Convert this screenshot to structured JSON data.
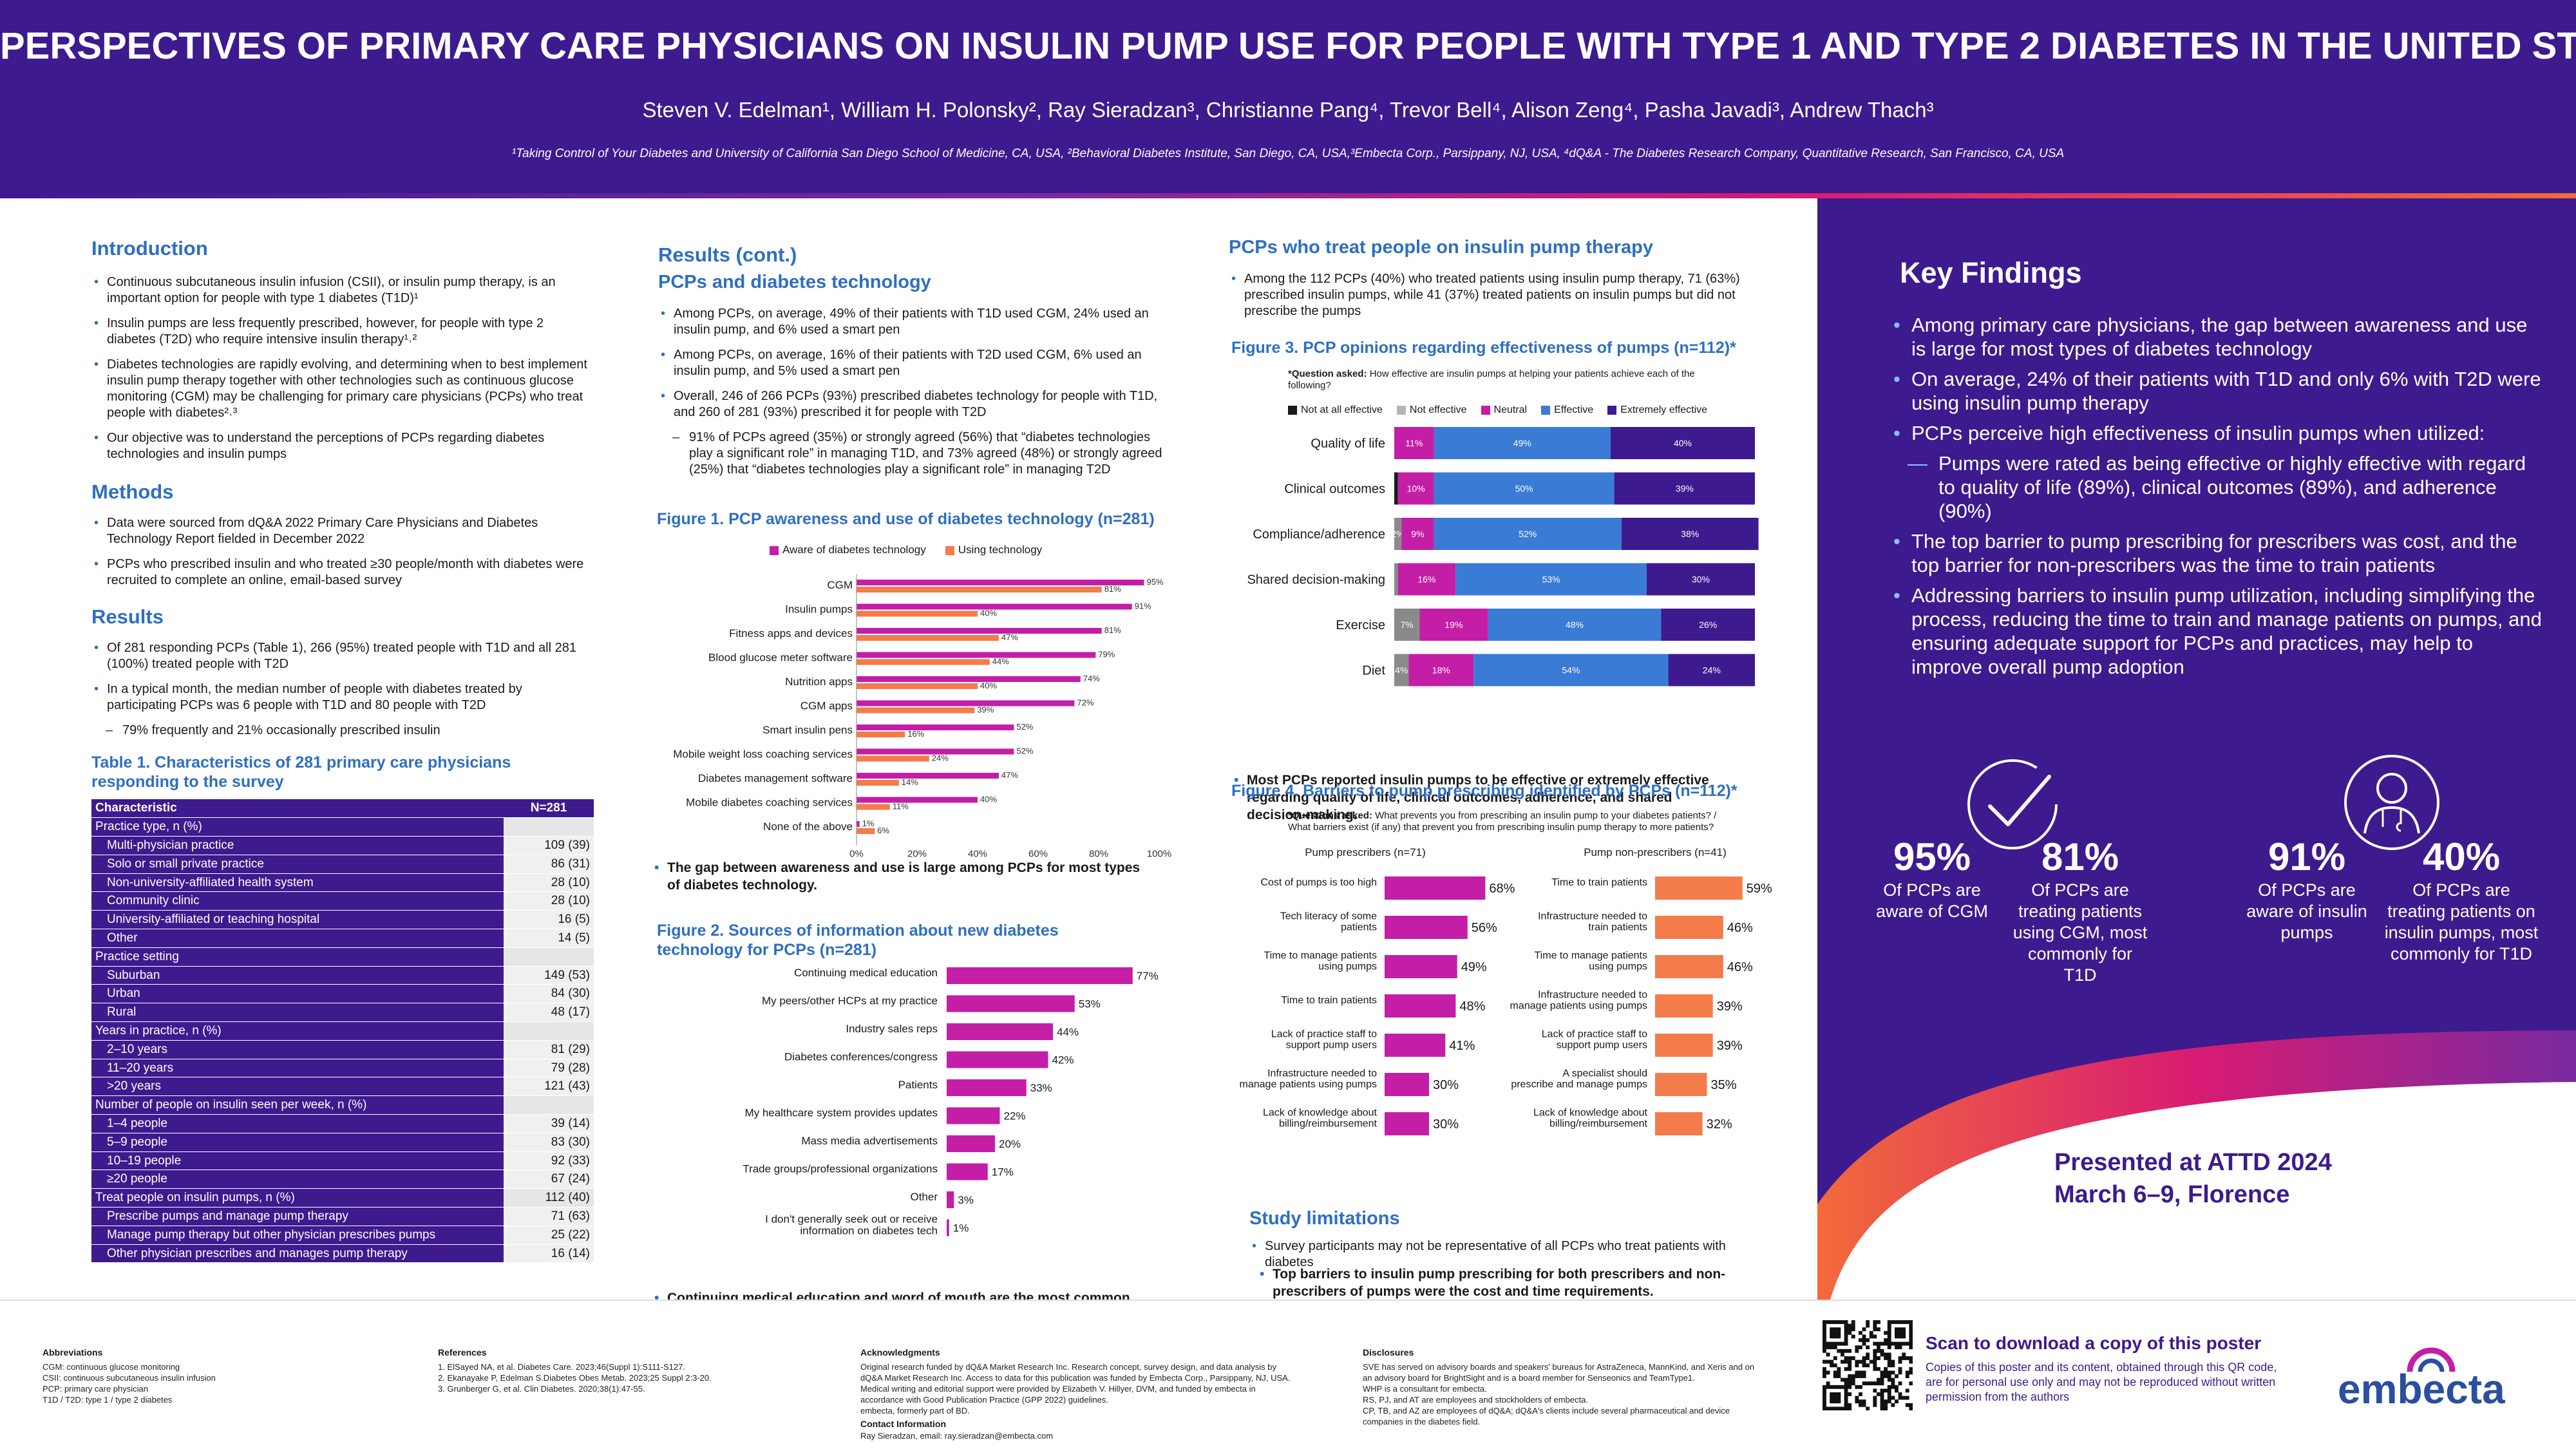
{
  "header": {
    "title": "PERSPECTIVES OF PRIMARY CARE PHYSICIANS ON INSULIN PUMP USE FOR PEOPLE WITH TYPE 1 AND TYPE 2 DIABETES IN THE UNITED STATES",
    "authors": "Steven V. Edelman¹, William H. Polonsky², Ray Sieradzan³, Christianne Pang⁴, Trevor Bell⁴, Alison Zeng⁴, Pasha Javadi³, Andrew Thach³",
    "affiliations": "¹Taking Control of Your Diabetes and University of California San Diego School of Medicine, CA, USA, ²Behavioral Diabetes Institute, San Diego, CA, USA,³Embecta Corp., Parsippany, NJ, USA, ⁴dQ&A - The Diabetes Research Company, Quantitative Research, San Francisco, CA, USA"
  },
  "intro": {
    "heading": "Introduction",
    "bullets": [
      "Continuous subcutaneous insulin infusion (CSII), or insulin pump therapy, is an important option for people with type 1 diabetes (T1D)¹",
      "Insulin pumps are less frequently prescribed, however, for people with type 2 diabetes (T2D) who require intensive insulin therapy¹˒²",
      "Diabetes technologies are rapidly evolving, and determining when to best implement insulin pump therapy together with other technologies such as continuous glucose monitoring (CGM) may be challenging for primary care physicians (PCPs) who treat people with diabetes²˒³",
      "Our objective was to understand the perceptions of PCPs regarding diabetes technologies and insulin pumps"
    ]
  },
  "methods": {
    "heading": "Methods",
    "bullets": [
      "Data were sourced from dQ&A 2022 Primary Care Physicians and Diabetes Technology Report fielded in December 2022",
      "PCPs who prescribed insulin and who treated ≥30 people/month with diabetes were recruited to complete an online, email-based survey"
    ]
  },
  "results": {
    "heading": "Results",
    "bullets": [
      "Of 281 responding PCPs (Table 1), 266 (95%) treated people with T1D and all 281 (100%) treated people with T2D",
      "In a typical month, the median number of people with diabetes treated by participating PCPs was 6 people with T1D and 80 people with T2D"
    ],
    "sub": "79% frequently and 21% occasionally prescribed insulin"
  },
  "table1": {
    "title": "Table 1. Characteristics of 281 primary care physicians responding to the survey",
    "header": [
      "Characteristic",
      "N=281"
    ],
    "rows": [
      {
        "label": "Practice type, n (%)",
        "value": "",
        "kind": "s"
      },
      {
        "label": "Multi-physician practice",
        "value": "109 (39)",
        "kind": "i"
      },
      {
        "label": "Solo or small private practice",
        "value": "86 (31)",
        "kind": "i"
      },
      {
        "label": "Non-university-affiliated health system",
        "value": "28 (10)",
        "kind": "i"
      },
      {
        "label": "Community clinic",
        "value": "28 (10)",
        "kind": "i"
      },
      {
        "label": "University-affiliated or teaching hospital",
        "value": "16 (5)",
        "kind": "i"
      },
      {
        "label": "Other",
        "value": "14 (5)",
        "kind": "i"
      },
      {
        "label": "Practice setting",
        "value": "",
        "kind": "s"
      },
      {
        "label": "Suburban",
        "value": "149 (53)",
        "kind": "i"
      },
      {
        "label": "Urban",
        "value": "84 (30)",
        "kind": "i"
      },
      {
        "label": "Rural",
        "value": "48 (17)",
        "kind": "i"
      },
      {
        "label": "Years in practice, n (%)",
        "value": "",
        "kind": "s"
      },
      {
        "label": "2–10 years",
        "value": "81 (29)",
        "kind": "i"
      },
      {
        "label": "11–20 years",
        "value": "79 (28)",
        "kind": "i"
      },
      {
        "label": ">20 years",
        "value": "121 (43)",
        "kind": "i"
      },
      {
        "label": "Number of people on insulin seen per week, n (%)",
        "value": "",
        "kind": "s"
      },
      {
        "label": "1–4 people",
        "value": "39 (14)",
        "kind": "i"
      },
      {
        "label": "5–9 people",
        "value": "83 (30)",
        "kind": "i"
      },
      {
        "label": "10–19 people",
        "value": "92 (33)",
        "kind": "i"
      },
      {
        "label": "≥20 people",
        "value": "67 (24)",
        "kind": "i"
      },
      {
        "label": "Treat people on insulin pumps, n (%)",
        "value": "112 (40)",
        "kind": "s"
      },
      {
        "label": "Prescribe pumps and manage pump therapy",
        "value": "71 (63)",
        "kind": "i"
      },
      {
        "label": "Manage pump therapy but other physician prescribes pumps",
        "value": "25 (22)",
        "kind": "i"
      },
      {
        "label": "Other physician prescribes and manages pump therapy",
        "value": "16 (14)",
        "kind": "i"
      }
    ]
  },
  "results_cont": {
    "heading": "Results (cont.)",
    "subheading": "PCPs and diabetes technology",
    "bullets": [
      "Among PCPs, on average, 49% of their patients with T1D used CGM, 24% used an insulin pump, and 6% used a smart pen",
      "Among PCPs, on average, 16% of their patients with T2D used CGM, 6% used an insulin pump, and 5% used a smart pen",
      "Overall, 246 of 266 PCPs (93%) prescribed diabetes technology for people with T1D, and 260 of 281 (93%) prescribed it for people with T2D"
    ],
    "sub": "91% of PCPs agreed (35%) or strongly agreed (56%) that “diabetes technologies play a significant role” in managing T1D, and 73% agreed (48%) or strongly agreed (25%) that “diabetes technologies play a significant role” in managing T2D"
  },
  "fig1": {
    "title": "Figure 1. PCP awareness and use of diabetes technology (n=281)",
    "takeaway": "The gap between awareness and use is large among PCPs for most types of diabetes technology."
  },
  "fig2": {
    "title": "Figure 2. Sources of information about new diabetes technology for PCPs (n=281)",
    "takeaway": "Continuing medical education and word of mouth are the most common sources of information about new diabetes technology."
  },
  "pump_section": {
    "heading": "PCPs who treat people on insulin pump therapy",
    "bullet": "Among the 112 PCPs (40%) who treated patients using insulin pump therapy, 71 (63%) prescribed insulin pumps, while 41 (37%) treated patients on insulin pumps but did not prescribe the pumps"
  },
  "fig3": {
    "title": "Figure 3. PCP opinions regarding effectiveness of pumps (n=112)*",
    "question_label": "*Question asked:",
    "question": "How effective are insulin pumps at helping your patients achieve each of the following?",
    "takeaway": "Most PCPs reported insulin pumps to be effective or extremely effective regarding quality of life, clinical outcomes, adherence, and shared decision-making."
  },
  "fig4": {
    "title": "Figure 4. Barriers to pump prescribing identified by PCPs (n=112)*",
    "question_label": "*Questions asked:",
    "question": "What prevents you from prescribing an insulin pump to your diabetes patients? / What barriers exist (if any) that prevent you from prescribing insulin pump therapy to more patients?",
    "takeaway": "Top barriers to insulin pump prescribing for both prescribers and non-prescribers of pumps were the cost and time requirements."
  },
  "limitations": {
    "heading": "Study limitations",
    "bullet": "Survey participants may not be representative of all PCPs who treat patients with diabetes"
  },
  "key_findings": {
    "heading": "Key Findings",
    "bullets": [
      "Among primary care physicians, the gap between awareness and use is large for most types of diabetes technology",
      "On average, 24% of their patients with T1D and only 6% with T2D were using insulin pump therapy",
      "PCPs perceive high effectiveness of insulin pumps when utilized:"
    ],
    "sub": "Pumps were rated as being effective or highly effective with regard to quality of life (89%), clinical outcomes (89%), and adherence (90%)",
    "bullets2": [
      "The top barrier to pump prescribing for prescribers was cost, and the top barrier for non-prescribers was the time to train patients",
      "Addressing barriers to insulin pump utilization, including simplifying the process, reducing the time to train and manage patients on pumps, and ensuring adequate support for PCPs and practices, may help to improve overall pump adoption"
    ],
    "stats": [
      {
        "big": "95%",
        "label": "Of PCPs are aware of CGM"
      },
      {
        "big": "81%",
        "label": "Of PCPs  are treating patients using CGM, most commonly for T1D"
      },
      {
        "big": "91%",
        "label": "Of PCPs are aware of insulin pumps"
      },
      {
        "big": "40%",
        "label": "Of PCPs are treating patients on insulin pumps, most commonly for T1D"
      }
    ],
    "presented_line1": "Presented at ATTD 2024",
    "presented_line2": "March 6–9, Florence"
  },
  "footer": {
    "abbrev_heading": "Abbreviations",
    "abbrev": [
      "CGM: continuous glucose monitoring",
      "CSII: continuous subcutaneous insulin infusion",
      "PCP: primary care physician",
      "T1D / T2D: type 1 / type 2 diabetes"
    ],
    "refs_heading": "References",
    "refs": [
      "1.  ElSayed NA, et al. Diabetes Care. 2023;46(Suppl 1):S111-S127.",
      "2.  Ekanayake P, Edelman S.Diabetes Obes Metab. 2023;25 Suppl 2:3-20.",
      "3.  Grunberger G, et al. Clin Diabetes. 2020;38(1):47-55."
    ],
    "ack_heading": "Acknowledgments",
    "ack": [
      "Original research funded by dQ&A Market Research Inc. Research concept, survey design, and data analysis by dQ&A Market Research Inc. Access to data for this publication was funded by Embecta Corp., Parsippany, NJ, USA.",
      "Medical writing and editorial support were provided by Elizabeth V. Hillyer, DVM, and funded by embecta in accordance with Good Publication Practice (GPP 2022) guidelines.",
      "embecta, formerly part of BD."
    ],
    "contact_heading": "Contact Information",
    "contact": "Ray Sieradzan, email: ray.sieradzan@embecta.com",
    "disc_heading": "Disclosures",
    "disc": [
      "SVE has served on advisory boards and speakers' bureaus for AstraZeneca, MannKind, and Xeris and on an advisory board for BrightSight and is a board member for Senseonics and TeamType1.",
      "WHP is a consultant for embecta.",
      "RS, PJ, and AT are employees and stockholders of embecta.",
      "CP, TB, and AZ are employees of dQ&A; dQ&A's clients include several pharmaceutical and device companies in the diabetes field."
    ],
    "scan_title": "Scan to download a copy of this poster",
    "scan_text": "Copies of this poster and its content, obtained through this QR code, are for personal use only and may not be reproduced without written permission from the authors",
    "logo": "embecta"
  },
  "colors": {
    "navy": "#3d1a8e",
    "blue": "#2f6fc0",
    "magenta": "#c41ea6",
    "orange": "#f47b4a",
    "gray": "#7f7f7f",
    "effective": "#3a7bd5",
    "extremely": "#3d1a8e"
  },
  "chart_data": [
    {
      "type": "bar",
      "orientation": "horizontal",
      "categories": [
        "CGM",
        "Insulin pumps",
        "Fitness apps and devices",
        "Blood glucose meter software",
        "Nutrition apps",
        "CGM apps",
        "Smart insulin pens",
        "Mobile weight loss coaching services",
        "Diabetes management software",
        "Mobile diabetes coaching services",
        "None of the above"
      ],
      "series": [
        {
          "name": "Aware of diabetes technology",
          "values": [
            95,
            91,
            81,
            79,
            74,
            72,
            52,
            52,
            47,
            40,
            1
          ],
          "labels": [
            "95%",
            "91%",
            "81%",
            "79%",
            "74%",
            "72%",
            "52%",
            "52%",
            "47%",
            "40%",
            "1%"
          ]
        },
        {
          "name": "Using technology",
          "values": [
            81,
            40,
            47,
            44,
            40,
            39,
            16,
            24,
            14,
            11,
            6
          ],
          "labels": [
            "81%",
            "40%",
            "47%",
            "44%",
            "40%",
            "39%",
            "16%",
            "24%",
            "14%",
            "11%",
            "6%"
          ]
        }
      ],
      "xticks": [
        "0%",
        "20%",
        "40%",
        "60%",
        "80%",
        "100%"
      ],
      "xlim": [
        0,
        100
      ],
      "legend": "top"
    },
    {
      "type": "bar",
      "orientation": "horizontal",
      "categories": [
        "Continuing medical education",
        "My peers/other HCPs at my practice",
        "Industry sales reps",
        "Diabetes conferences/congress",
        "Patients",
        "My healthcare system provides updates",
        "Mass media advertisements",
        "Trade groups/professional organizations",
        "Other",
        "I don't generally seek out or receive information on diabetes tech"
      ],
      "values": [
        77,
        53,
        44,
        42,
        33,
        22,
        20,
        17,
        3,
        1
      ],
      "labels": [
        "77%",
        "53%",
        "44%",
        "42%",
        "33%",
        "22%",
        "20%",
        "17%",
        "3%",
        "1%"
      ],
      "xlim": [
        0,
        100
      ]
    },
    {
      "type": "bar",
      "stacked": true,
      "orientation": "horizontal",
      "categories": [
        "Quality of life",
        "Clinical outcomes",
        "Compliance/adherence",
        "Shared decision-making",
        "Exercise",
        "Diet"
      ],
      "series": [
        {
          "name": "Not at all effective",
          "values": [
            0,
            1,
            0,
            0,
            0,
            0
          ],
          "labels": [
            "",
            "",
            "",
            "",
            "",
            ""
          ]
        },
        {
          "name": "Not effective",
          "values": [
            0,
            0,
            2,
            1,
            7,
            4
          ],
          "labels": [
            "",
            "",
            "2%",
            "",
            "7%",
            "4%"
          ]
        },
        {
          "name": "Neutral",
          "values": [
            11,
            10,
            9,
            16,
            19,
            18
          ],
          "labels": [
            "11%",
            "10%",
            "9%",
            "16%",
            "19%",
            "18%"
          ]
        },
        {
          "name": "Effective",
          "values": [
            49,
            50,
            52,
            53,
            48,
            54
          ],
          "labels": [
            "49%",
            "50%",
            "52%",
            "53%",
            "48%",
            "54%"
          ]
        },
        {
          "name": "Extremely effective",
          "values": [
            40,
            39,
            38,
            30,
            26,
            24
          ],
          "labels": [
            "40%",
            "39%",
            "38%",
            "30%",
            "26%",
            "24%"
          ]
        }
      ],
      "xlim": [
        0,
        100
      ],
      "legend": "top"
    },
    {
      "type": "bar",
      "orientation": "horizontal",
      "title": "Pump prescribers (n=71)",
      "categories": [
        "Cost of pumps is too high",
        "Tech literacy of some patients",
        "Time to manage patients using pumps",
        "Time to train patients",
        "Lack of practice staff to support pump users",
        "Infrastructure needed to manage patients using pumps",
        "Lack of knowledge about billing/reimbursement"
      ],
      "values": [
        68,
        56,
        49,
        48,
        41,
        30,
        30
      ],
      "labels": [
        "68%",
        "56%",
        "49%",
        "48%",
        "41%",
        "30%",
        "30%"
      ],
      "xlim": [
        0,
        100
      ]
    },
    {
      "type": "bar",
      "orientation": "horizontal",
      "title": "Pump non-prescribers (n=41)",
      "categories": [
        "Time to train patients",
        "Infrastructure needed to train patients",
        "Time to manage patients using pumps",
        "Infrastructure needed to manage patients using pumps",
        "Lack of practice staff to support pump users",
        "A specialist should prescribe and manage pumps",
        "Lack of knowledge about billing/reimbursement"
      ],
      "values": [
        59,
        46,
        46,
        39,
        39,
        35,
        32
      ],
      "labels": [
        "59%",
        "46%",
        "46%",
        "39%",
        "39%",
        "35%",
        "32%"
      ],
      "xlim": [
        0,
        100
      ]
    }
  ]
}
